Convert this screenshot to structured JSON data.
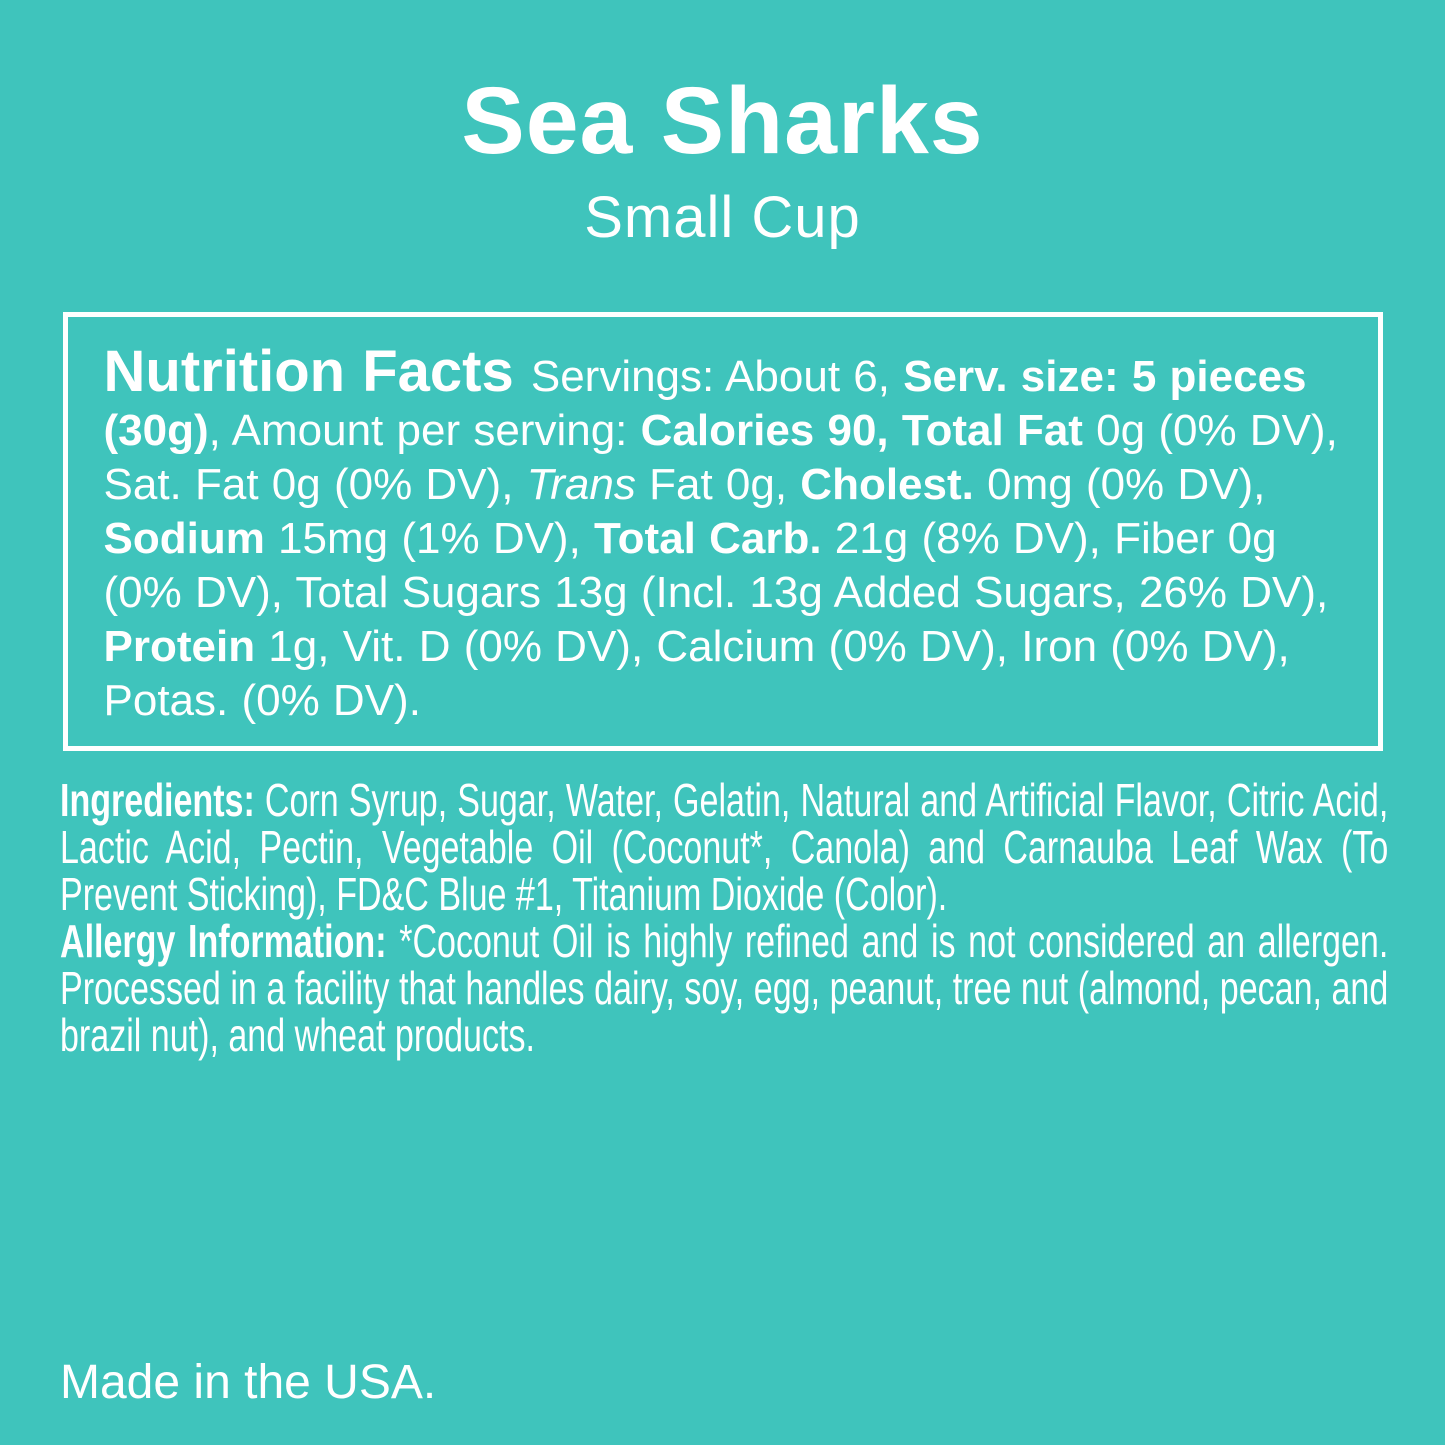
{
  "colors": {
    "background": "#3FC4BC",
    "text": "#FFFFFF",
    "panel_border": "#FFFFFF"
  },
  "header": {
    "title": "Sea Sharks",
    "subtitle": "Small Cup"
  },
  "nutrition_panel": {
    "runs": [
      {
        "text": "Nutrition Facts ",
        "style": "heading"
      },
      {
        "text": "Servings: About 6, ",
        "style": "regular"
      },
      {
        "text": "Serv. size: 5 pieces (30g)",
        "style": "bold"
      },
      {
        "text": ", Amount per serving: ",
        "style": "regular"
      },
      {
        "text": "Calories 90, Total Fat",
        "style": "bold"
      },
      {
        "text": " 0g (0% DV), Sat. Fat 0g (0% DV), ",
        "style": "regular"
      },
      {
        "text": "Trans",
        "style": "italic"
      },
      {
        "text": " Fat 0g, ",
        "style": "regular"
      },
      {
        "text": "Cholest.",
        "style": "bold"
      },
      {
        "text": " 0mg (0% DV), ",
        "style": "regular"
      },
      {
        "text": "Sodium",
        "style": "bold"
      },
      {
        "text": " 15mg (1% DV), ",
        "style": "regular"
      },
      {
        "text": "Total Carb.",
        "style": "bold"
      },
      {
        "text": " 21g (8% DV), Fiber 0g (0% DV), Total Sugars 13g (Incl. 13g Added Sugars, 26% DV), ",
        "style": "regular"
      },
      {
        "text": "Protein",
        "style": "bold"
      },
      {
        "text": " 1g, Vit. D (0% DV), Calcium (0% DV), Iron (0% DV), Potas. (0% DV).",
        "style": "regular"
      }
    ]
  },
  "ingredients_section": {
    "runs": [
      {
        "text": "Ingredients:",
        "style": "bold"
      },
      {
        "text": " Corn Syrup, Sugar, Water, Gelatin, Natural and Artificial Flavor, Citric Acid, Lactic Acid, Pectin, Vegetable Oil (Coconut*, Canola) and Carnauba Leaf Wax (To Prevent Sticking), FD&C Blue #1, Titanium Dioxide (Color).",
        "style": "regular"
      }
    ]
  },
  "allergy_section": {
    "runs": [
      {
        "text": "Allergy Information:",
        "style": "bold"
      },
      {
        "text": " *Coconut Oil is highly refined and is not considered an allergen. Processed in a facility that handles dairy, soy, egg, peanut, tree nut (almond, pecan, and brazil nut), and wheat products.",
        "style": "regular"
      }
    ]
  },
  "footer": {
    "origin_text": "Made in the USA."
  }
}
